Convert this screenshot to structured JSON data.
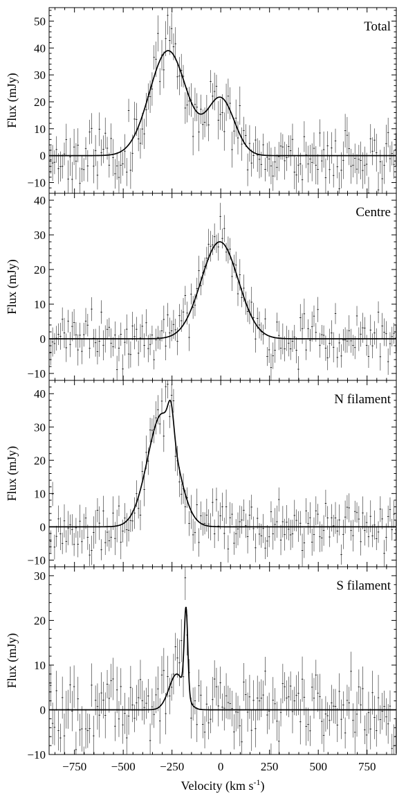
{
  "chart_data": [
    {
      "type": "line",
      "title": "Total",
      "ylabel": "Flux (mJy)",
      "xlim": [
        -880,
        900
      ],
      "ylim": [
        -14,
        55
      ],
      "yticks": [
        -10,
        0,
        10,
        20,
        30,
        40,
        50
      ],
      "fit_components": [
        {
          "amp": 39,
          "center": -270,
          "sigma": 95
        },
        {
          "amp": 21,
          "center": 0,
          "sigma": 70
        }
      ],
      "noise": 5.5,
      "seed": 11
    },
    {
      "type": "line",
      "title": "Centre",
      "ylabel": "Flux (mJy)",
      "xlim": [
        -880,
        900
      ],
      "ylim": [
        -12,
        42
      ],
      "yticks": [
        -10,
        0,
        10,
        20,
        30,
        40
      ],
      "fit_components": [
        {
          "amp": 28,
          "center": -5,
          "sigma": 95
        }
      ],
      "noise": 3.5,
      "seed": 23
    },
    {
      "type": "line",
      "title": "N filament",
      "ylabel": "Flux (mJy)",
      "xlim": [
        -880,
        900
      ],
      "ylim": [
        -12,
        44
      ],
      "yticks": [
        -10,
        0,
        10,
        20,
        30,
        40
      ],
      "fit_components": [
        {
          "amp": 34,
          "center": -300,
          "sigma": 75
        },
        {
          "amp": 9,
          "center": -255,
          "sigma": 15
        }
      ],
      "noise": 4,
      "seed": 37
    },
    {
      "type": "line",
      "title": "S filament",
      "ylabel": "Flux (mJy)",
      "xlim": [
        -880,
        900
      ],
      "ylim": [
        -10,
        32
      ],
      "yticks": [
        -10,
        0,
        10,
        20,
        30
      ],
      "fit_components": [
        {
          "amp": 8,
          "center": -225,
          "sigma": 40
        },
        {
          "amp": 19,
          "center": -178,
          "sigma": 9
        }
      ],
      "noise": 4,
      "seed": 51
    }
  ],
  "x_axis": {
    "label": "Velocity (km s",
    "label_sup": "-1",
    "label_end": ")",
    "ticks": [
      -750,
      -500,
      -250,
      0,
      250,
      500,
      750
    ]
  }
}
